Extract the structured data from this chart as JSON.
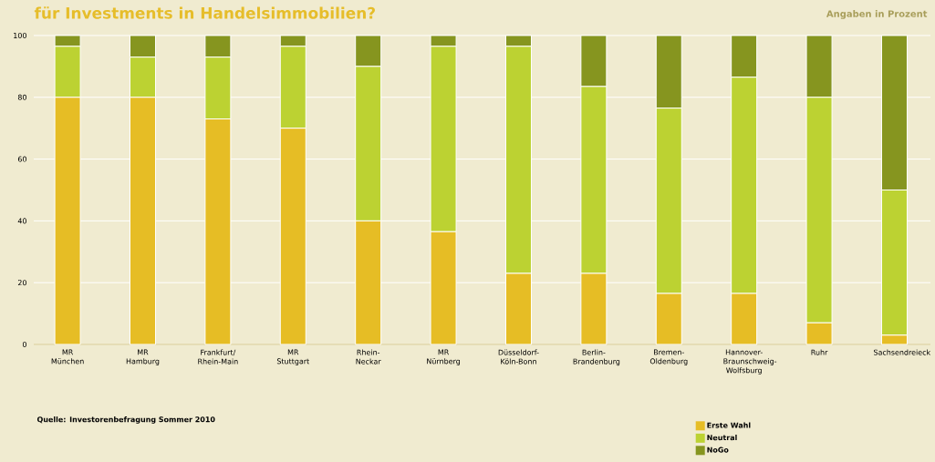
{
  "chart_data": {
    "type": "bar",
    "stacked": true,
    "title": "für Investments in Handelsimmobilien?",
    "subtitle": "Angaben in Prozent",
    "annotations": [
      "Quelle: Investorenbefragung Sommer 2010"
    ],
    "categories": [
      "MR München",
      "MR Hamburg",
      "Frankfurt/ Rhein-Main",
      "MR Stuttgart",
      "Rhein-Neckar",
      "MR Nürnberg",
      "Düsseldorf-Köln-Bonn",
      "Berlin-Brandenburg",
      "Bremen-Oldenburg",
      "Hannover-Braunschweig-Wolfsburg",
      "Ruhr",
      "Sachsendreieck"
    ],
    "series": [
      {
        "name": "Erste Wahl",
        "color": "#e6bd25",
        "values": [
          80,
          80,
          73,
          70,
          40,
          36.5,
          23,
          23,
          16.5,
          16.5,
          7,
          3
        ]
      },
      {
        "name": "Neutral",
        "color": "#bcd232",
        "values": [
          16.5,
          13,
          20,
          26.5,
          50,
          60,
          73.5,
          60.5,
          60,
          70,
          73,
          47
        ]
      },
      {
        "name": "NoGo",
        "color": "#86951f",
        "values": [
          3.5,
          7,
          7,
          3.5,
          10,
          3.5,
          3.5,
          16.5,
          23.5,
          13.5,
          20,
          50
        ]
      }
    ],
    "ylim": [
      0,
      100
    ],
    "yticks": [
      0,
      20,
      40,
      60,
      80,
      100
    ],
    "grid": "y",
    "legend": "bottom right"
  }
}
